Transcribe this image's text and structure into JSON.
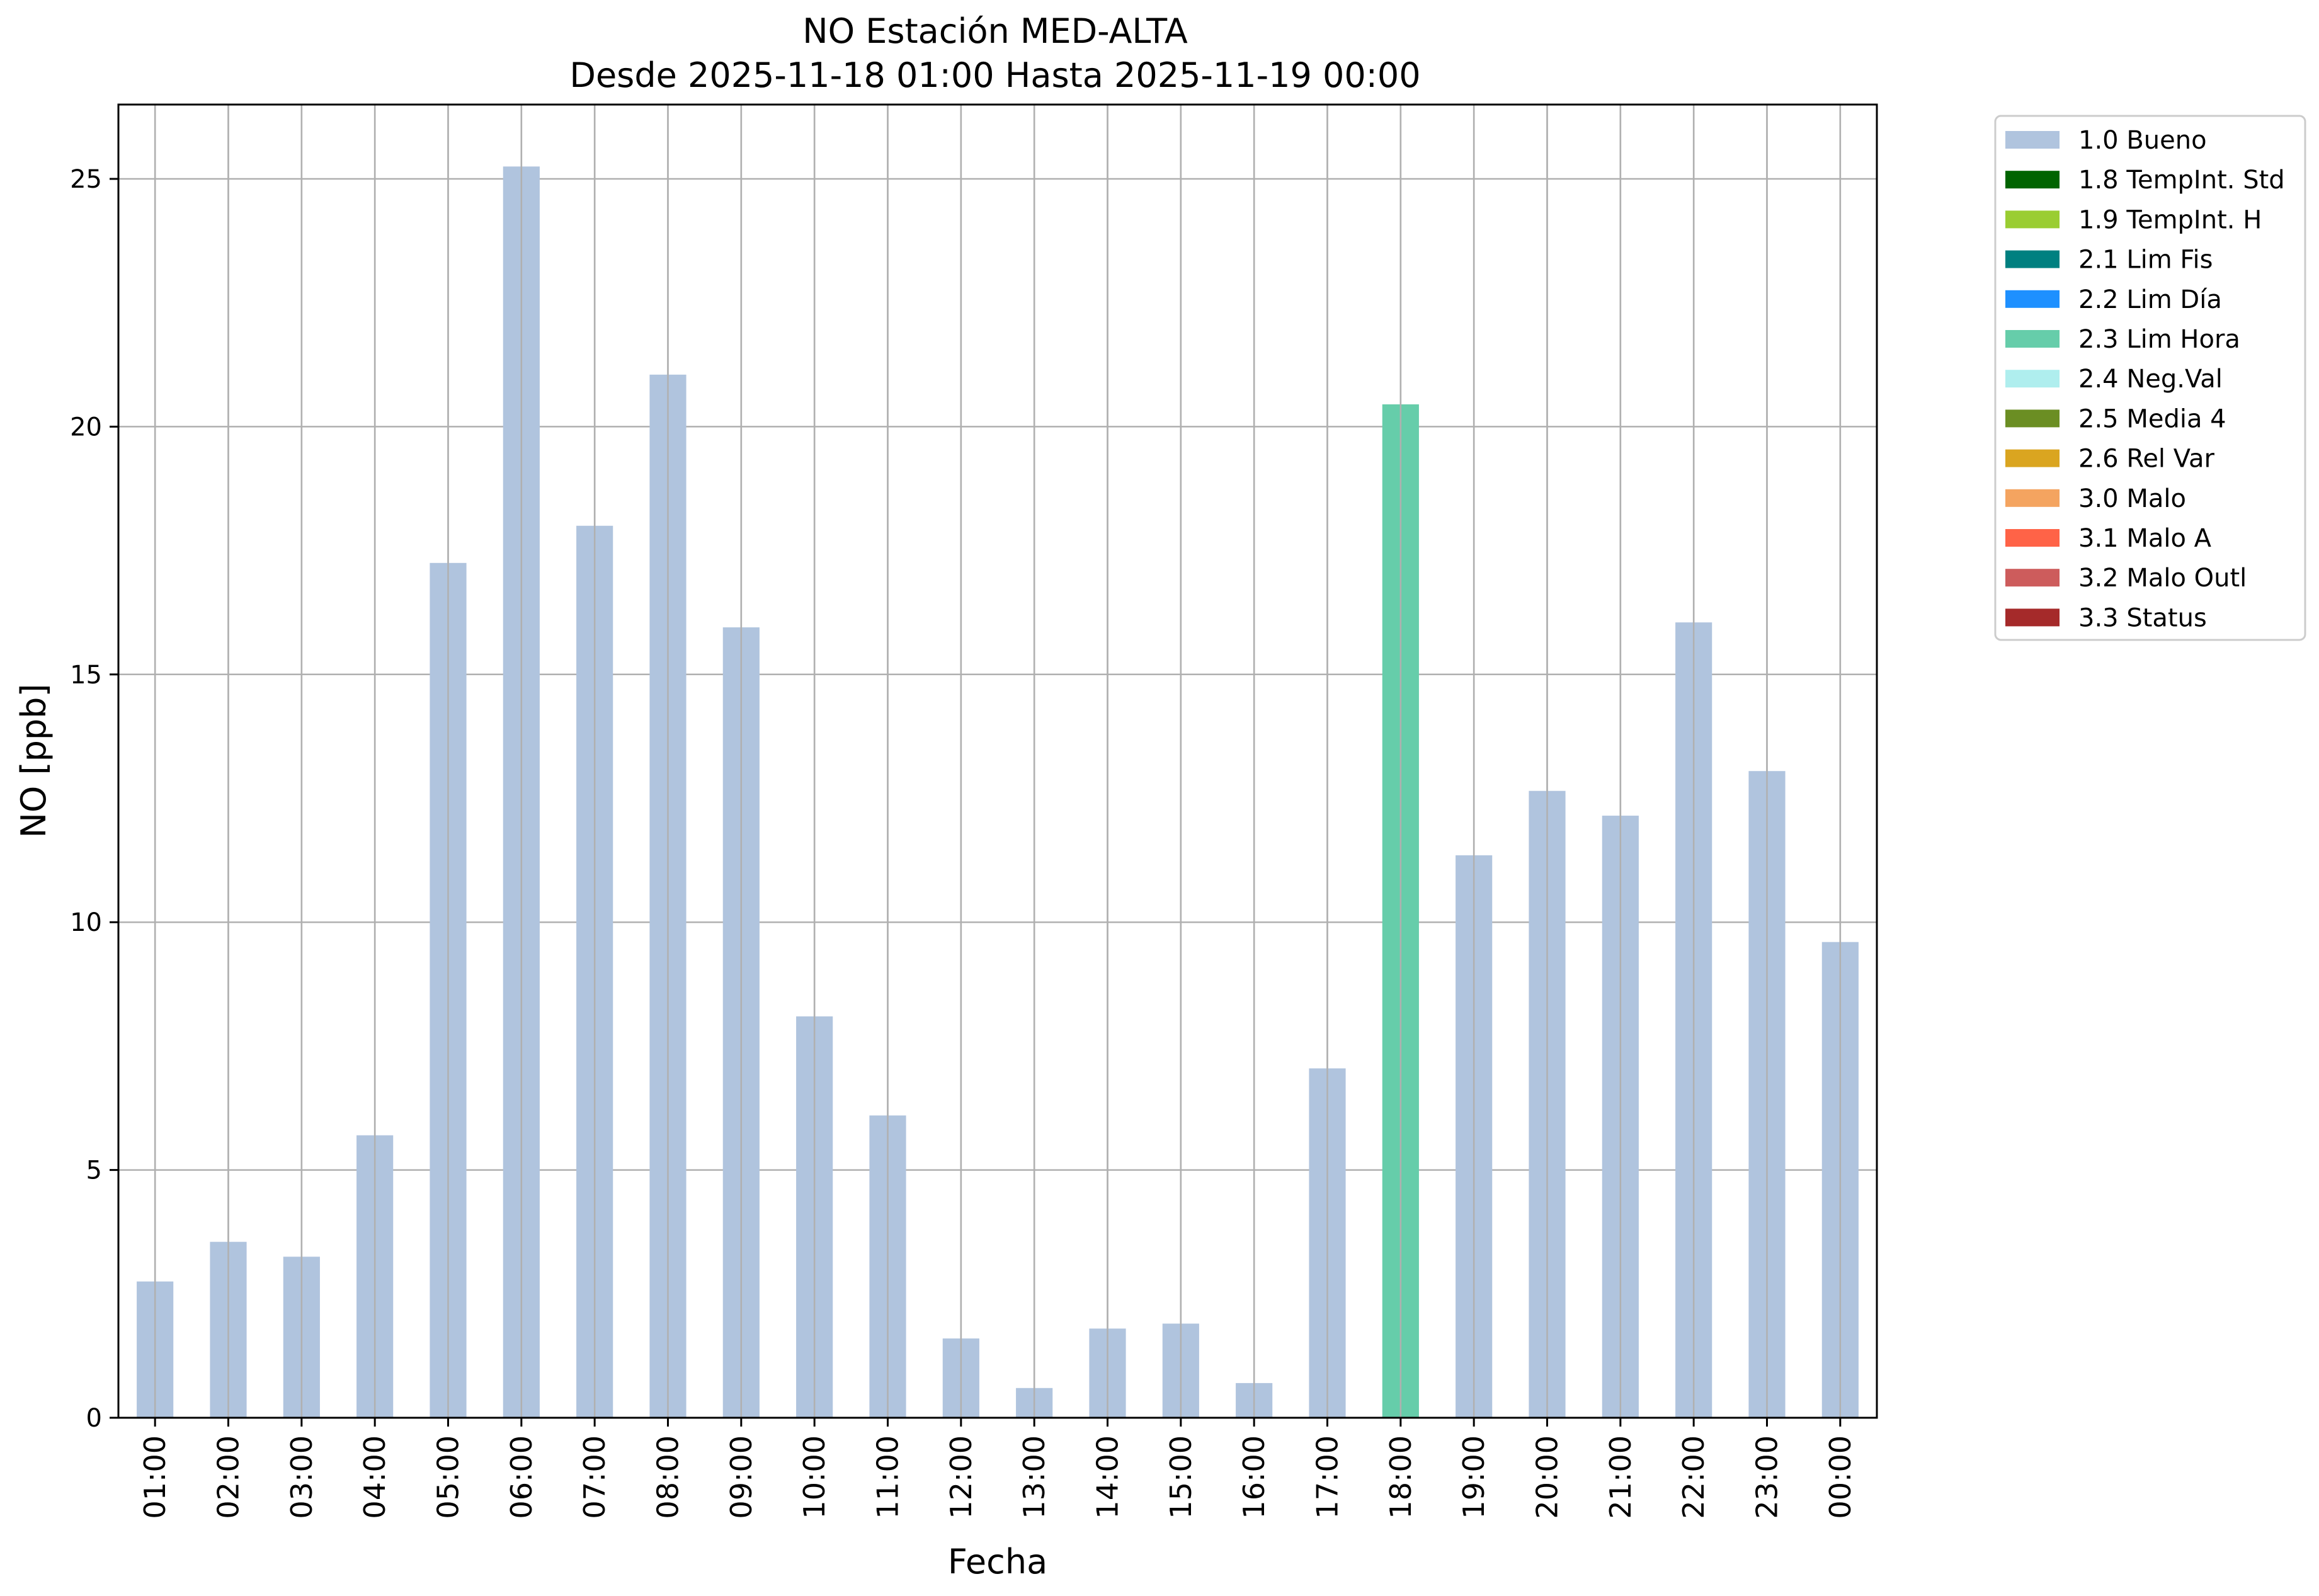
{
  "chart_data": {
    "type": "bar",
    "title_line1": "NO Estación MED-ALTA",
    "title_line2": "Desde 2025-11-18 01:00 Hasta 2025-11-19 00:00",
    "xlabel": "Fecha",
    "ylabel": "NO [ppb]",
    "ylim": [
      0,
      26.5
    ],
    "yticks": [
      0,
      5,
      10,
      15,
      20,
      25
    ],
    "grid": true,
    "legend_position": "outside-top-right",
    "categories": [
      "01:00",
      "02:00",
      "03:00",
      "04:00",
      "05:00",
      "06:00",
      "07:00",
      "08:00",
      "09:00",
      "10:00",
      "11:00",
      "12:00",
      "13:00",
      "14:00",
      "15:00",
      "16:00",
      "17:00",
      "18:00",
      "19:00",
      "20:00",
      "21:00",
      "22:00",
      "23:00",
      "00:00"
    ],
    "values": [
      2.75,
      3.55,
      3.25,
      5.7,
      17.25,
      25.25,
      18.0,
      21.05,
      15.95,
      8.1,
      6.1,
      1.6,
      0.6,
      1.8,
      1.9,
      0.7,
      7.05,
      20.45,
      11.35,
      12.65,
      12.15,
      16.05,
      13.05,
      9.6
    ],
    "bar_flags": [
      "1.0 Bueno",
      "1.0 Bueno",
      "1.0 Bueno",
      "1.0 Bueno",
      "1.0 Bueno",
      "1.0 Bueno",
      "1.0 Bueno",
      "1.0 Bueno",
      "1.0 Bueno",
      "1.0 Bueno",
      "1.0 Bueno",
      "1.0 Bueno",
      "1.0 Bueno",
      "1.0 Bueno",
      "1.0 Bueno",
      "1.0 Bueno",
      "1.0 Bueno",
      "2.3 Lim Hora",
      "1.0 Bueno",
      "1.0 Bueno",
      "1.0 Bueno",
      "1.0 Bueno",
      "1.0 Bueno",
      "1.0 Bueno"
    ],
    "legend": [
      {
        "label": "1.0 Bueno",
        "color": "#b0c4de"
      },
      {
        "label": "1.8 TempInt. Std",
        "color": "#006400"
      },
      {
        "label": "1.9 TempInt. H",
        "color": "#9acd32"
      },
      {
        "label": "2.1 Lim Fis",
        "color": "#008080"
      },
      {
        "label": "2.2 Lim Día",
        "color": "#1e90ff"
      },
      {
        "label": "2.3 Lim Hora",
        "color": "#66cdaa"
      },
      {
        "label": "2.4 Neg.Val",
        "color": "#afeeee"
      },
      {
        "label": "2.5 Media 4",
        "color": "#6b8e23"
      },
      {
        "label": "2.6 Rel Var",
        "color": "#daa520"
      },
      {
        "label": "3.0 Malo",
        "color": "#f4a460"
      },
      {
        "label": "3.1 Malo A",
        "color": "#ff6347"
      },
      {
        "label": "3.2 Malo Outl",
        "color": "#cd5c5c"
      },
      {
        "label": "3.3 Status",
        "color": "#a52a2a"
      }
    ]
  }
}
